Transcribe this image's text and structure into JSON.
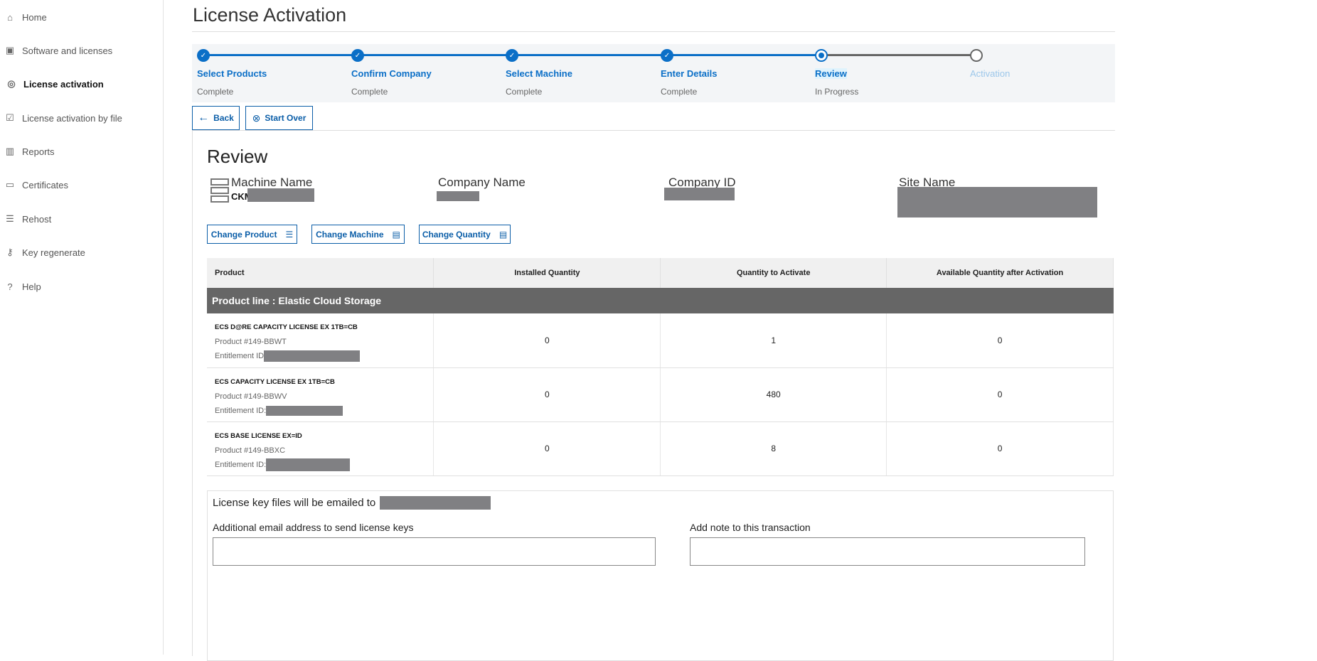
{
  "sidebar": {
    "items": [
      {
        "label": "Home",
        "icon": "home-icon"
      },
      {
        "label": "Software and licenses",
        "icon": "software-icon"
      },
      {
        "label": "License activation",
        "icon": "activation-icon",
        "active": true
      },
      {
        "label": "License activation by file",
        "icon": "file-check-icon"
      },
      {
        "label": "Reports",
        "icon": "chart-icon"
      },
      {
        "label": "Certificates",
        "icon": "certificate-icon"
      },
      {
        "label": "Rehost",
        "icon": "rehost-icon"
      },
      {
        "label": "Key regenerate",
        "icon": "key-icon"
      },
      {
        "label": "Help",
        "icon": "help-icon"
      }
    ]
  },
  "page": {
    "title": "License Activation"
  },
  "stepper": {
    "steps": [
      {
        "label": "Select Products",
        "status": "Complete",
        "state": "done"
      },
      {
        "label": "Confirm Company",
        "status": "Complete",
        "state": "done"
      },
      {
        "label": "Select Machine",
        "status": "Complete",
        "state": "done"
      },
      {
        "label": "Enter Details",
        "status": "Complete",
        "state": "done"
      },
      {
        "label": "Review",
        "status": "In Progress",
        "state": "current"
      },
      {
        "label": "Activation",
        "status": "",
        "state": "todo"
      }
    ]
  },
  "actions": {
    "back": "Back",
    "start_over": "Start Over"
  },
  "review": {
    "heading": "Review",
    "machine_label": "Machine Name",
    "machine_value": "CKM",
    "company_label": "Company Name",
    "company_id_label": "Company ID",
    "site_label": "Site Name",
    "change_product": "Change Product",
    "change_machine": "Change Machine",
    "change_quantity": "Change Quantity"
  },
  "table": {
    "headers": [
      "Product",
      "Installed Quantity",
      "Quantity to Activate",
      "Available Quantity after Activation"
    ],
    "product_line": "Product line : Elastic Cloud Storage",
    "rows": [
      {
        "name": "ECS D@RE CAPACITY LICENSE EX 1TB=CB",
        "product": "Product #149-BBWT",
        "entitlement": "Entitlement ID",
        "installed": "0",
        "activate": "1",
        "available": "0"
      },
      {
        "name": "ECS CAPACITY LICENSE EX 1TB=CB",
        "product": "Product #149-BBWV",
        "entitlement": "Entitlement ID:",
        "installed": "0",
        "activate": "480",
        "available": "0"
      },
      {
        "name": "ECS BASE LICENSE EX=ID",
        "product": "Product #149-BBXC",
        "entitlement": "Entitlement ID:",
        "installed": "0",
        "activate": "8",
        "available": "0"
      }
    ]
  },
  "email": {
    "notice": "License key files will be emailed to",
    "additional_label": "Additional email address to send license keys",
    "note_label": "Add note to this transaction",
    "additional_value": "",
    "note_value": ""
  },
  "colors": {
    "accent": "#0b6fc7",
    "product_line_bg": "#666666",
    "stepper_bg": "#f3f5f7"
  }
}
